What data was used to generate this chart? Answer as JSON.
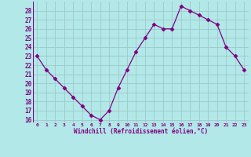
{
  "x": [
    0,
    1,
    2,
    3,
    4,
    5,
    6,
    7,
    8,
    9,
    10,
    11,
    12,
    13,
    14,
    15,
    16,
    17,
    18,
    19,
    20,
    21,
    22,
    23
  ],
  "y": [
    23,
    21.5,
    20.5,
    19.5,
    18.5,
    17.5,
    16.5,
    16,
    17,
    19.5,
    21.5,
    23.5,
    25,
    26.5,
    26,
    26,
    28.5,
    28,
    27.5,
    27,
    26.5,
    24,
    23,
    21.5
  ],
  "line_color": "#800080",
  "marker": "D",
  "markersize": 2.5,
  "linewidth": 0.9,
  "bg_color": "#b2e8e8",
  "grid_color": "#a0c8c8",
  "xlabel": "Windchill (Refroidissement éolien,°C)",
  "xlabel_color": "#800080",
  "tick_color": "#800080",
  "ylim": [
    15.7,
    29.0
  ],
  "xlim": [
    -0.5,
    23.5
  ],
  "yticks": [
    16,
    17,
    18,
    19,
    20,
    21,
    22,
    23,
    24,
    25,
    26,
    27,
    28
  ],
  "xticks": [
    0,
    1,
    2,
    3,
    4,
    5,
    6,
    7,
    8,
    9,
    10,
    11,
    12,
    13,
    14,
    15,
    16,
    17,
    18,
    19,
    20,
    21,
    22,
    23
  ],
  "xtick_labels": [
    "0",
    "1",
    "2",
    "3",
    "4",
    "5",
    "6",
    "7",
    "8",
    "9",
    "10",
    "11",
    "12",
    "13",
    "14",
    "15",
    "16",
    "17",
    "18",
    "19",
    "20",
    "21",
    "22",
    "23"
  ],
  "ytick_labels": [
    "16",
    "17",
    "18",
    "19",
    "20",
    "21",
    "22",
    "23",
    "24",
    "25",
    "26",
    "27",
    "28"
  ]
}
